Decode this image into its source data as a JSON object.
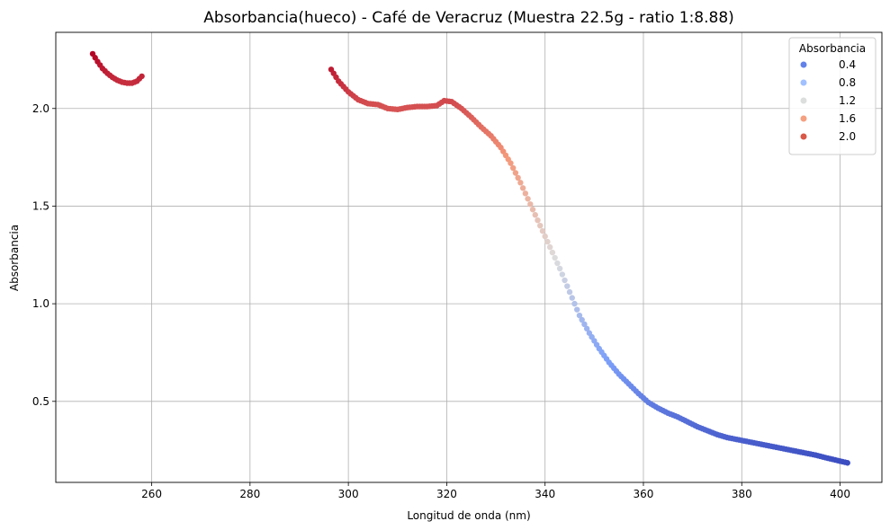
{
  "chart_data": {
    "type": "scatter",
    "title": "Absorbancia(hueco) - Café de Veracruz (Muestra 22.5g - ratio 1:8.88)",
    "xlabel": "Longitud de onda (nm)",
    "ylabel": "Absorbancia",
    "xlim": [
      240.5,
      408.5
    ],
    "ylim": [
      0.085,
      2.39
    ],
    "xticks": [
      260,
      280,
      300,
      320,
      340,
      360,
      380,
      400
    ],
    "xtick_labels": [
      "260",
      "280",
      "300",
      "320",
      "340",
      "360",
      "380",
      "400"
    ],
    "yticks": [
      0.5,
      1.0,
      1.5,
      2.0
    ],
    "ytick_labels": [
      "0.5",
      "1.0",
      "1.5",
      "2.0"
    ],
    "grid": true,
    "colormap": "coolwarm",
    "color_range": [
      0.18,
      2.28
    ],
    "legend": {
      "title": "Absorbancia",
      "position": "top-right",
      "entries": [
        {
          "label": "0.4",
          "color": "#6282ea"
        },
        {
          "label": "0.8",
          "color": "#a1c0ff"
        },
        {
          "label": "1.2",
          "color": "#dcdddd"
        },
        {
          "label": "1.6",
          "color": "#f5a081"
        },
        {
          "label": "2.0",
          "color": "#d95847"
        }
      ]
    },
    "series": [
      {
        "x": [
          248,
          249,
          250,
          251,
          252,
          253,
          254,
          255,
          256,
          257,
          258
        ],
        "y": [
          2.28,
          2.24,
          2.205,
          2.18,
          2.16,
          2.145,
          2.135,
          2.13,
          2.13,
          2.14,
          2.165
        ]
      },
      {
        "x": [
          296.5,
          298,
          300,
          302,
          304,
          306,
          308,
          310,
          312,
          314,
          316,
          318,
          319.5,
          321,
          323,
          325,
          327,
          329,
          331,
          333,
          335,
          337,
          339,
          341,
          343,
          345,
          347,
          349,
          351,
          353,
          355,
          357,
          359,
          361,
          363,
          365,
          367,
          369,
          371,
          373,
          375,
          377,
          379,
          381,
          383,
          385,
          387,
          389,
          391,
          393,
          395,
          397,
          399,
          401.5
        ],
        "y": [
          2.2,
          2.14,
          2.085,
          2.045,
          2.025,
          2.02,
          2.0,
          1.995,
          2.005,
          2.01,
          2.01,
          2.015,
          2.04,
          2.035,
          2.0,
          1.955,
          1.905,
          1.86,
          1.8,
          1.72,
          1.62,
          1.51,
          1.4,
          1.29,
          1.18,
          1.06,
          0.94,
          0.85,
          0.77,
          0.7,
          0.64,
          0.59,
          0.54,
          0.495,
          0.465,
          0.44,
          0.42,
          0.395,
          0.37,
          0.35,
          0.33,
          0.315,
          0.305,
          0.295,
          0.285,
          0.275,
          0.265,
          0.255,
          0.245,
          0.235,
          0.225,
          0.212,
          0.2,
          0.185
        ]
      }
    ]
  }
}
